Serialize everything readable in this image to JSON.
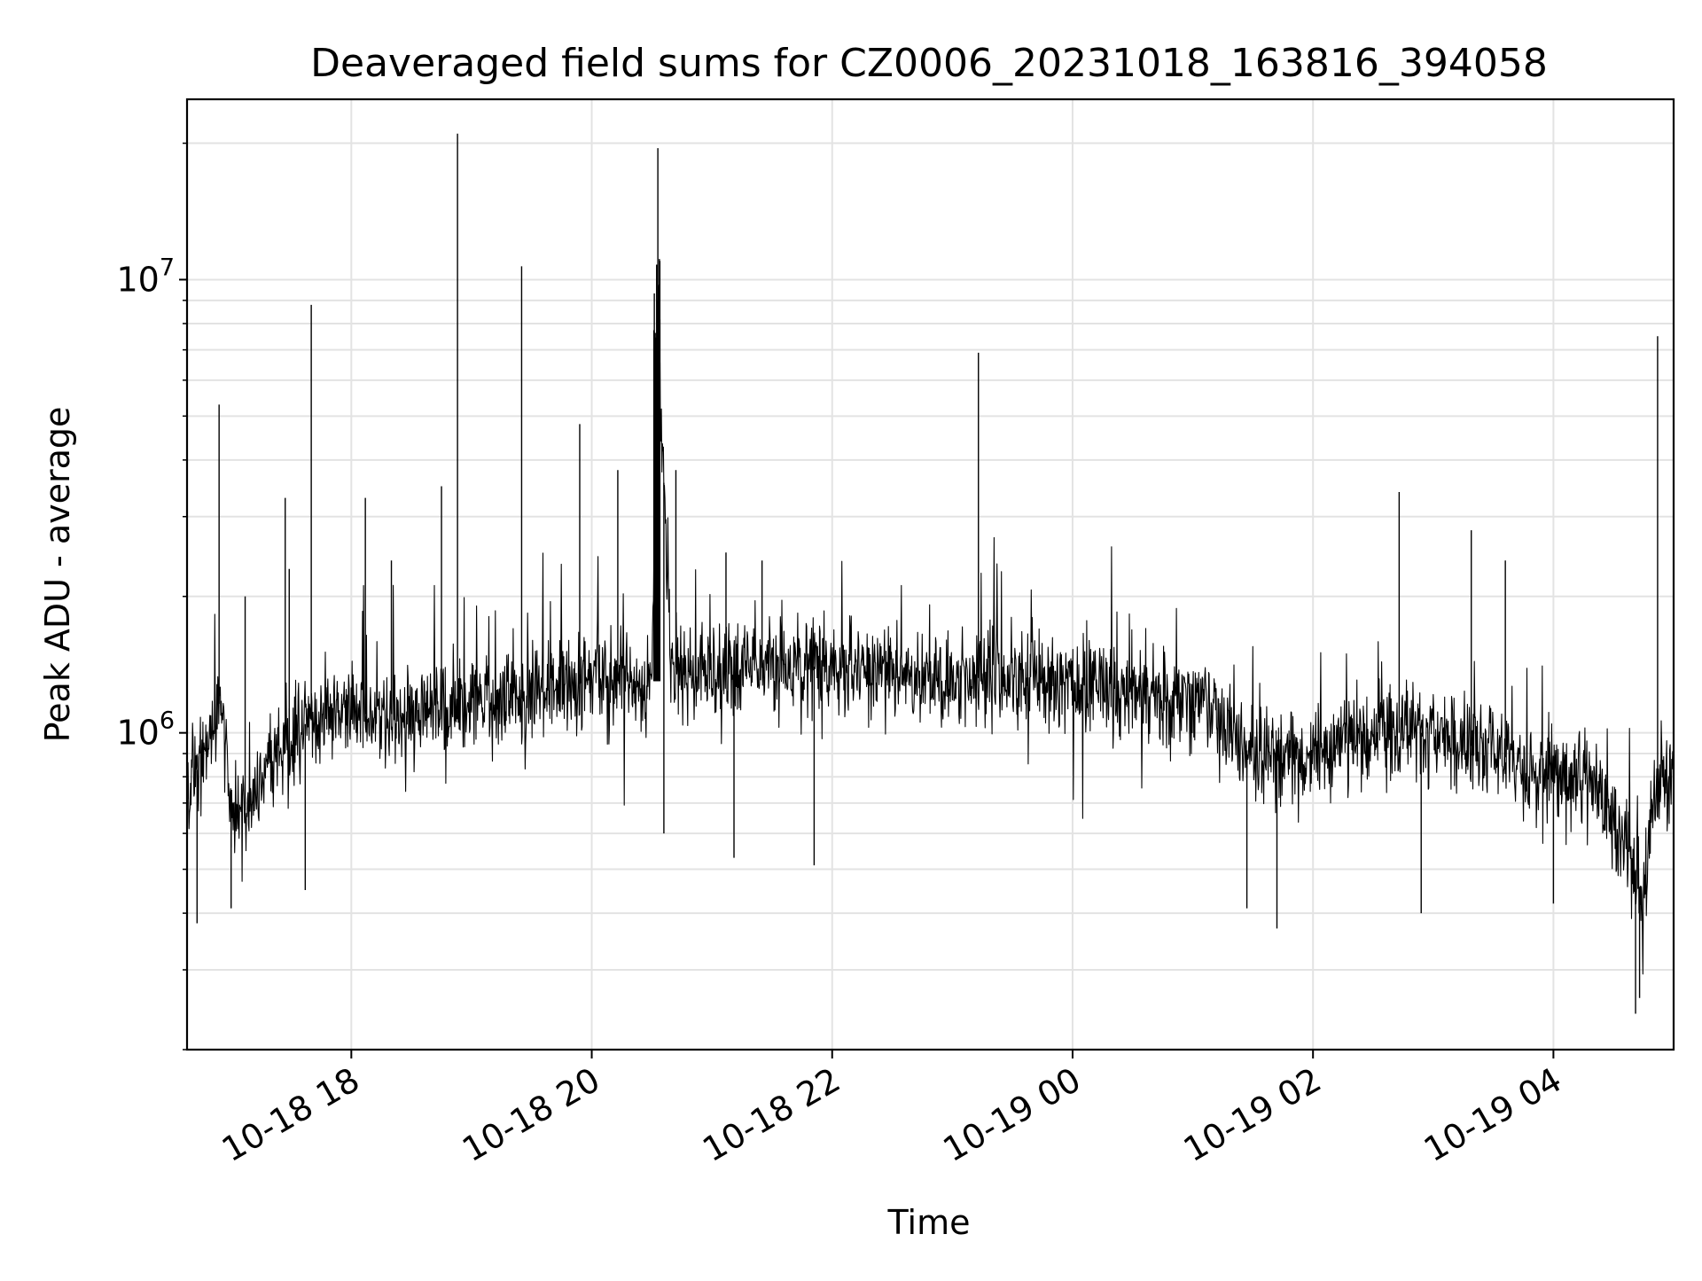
{
  "chart_data": {
    "type": "line",
    "title": "Deaveraged field sums for CZ0006_20231018_163816_394058",
    "xlabel": "Time",
    "ylabel": "Peak ADU - average",
    "x_range": [
      "2023-10-18T16:38",
      "2023-10-19T05:00"
    ],
    "y_scale": "log",
    "ylim": [
      200000,
      25000000
    ],
    "x_ticks": [
      {
        "time": "2023-10-18T18:00",
        "label": "10-18 18"
      },
      {
        "time": "2023-10-18T20:00",
        "label": "10-18 20"
      },
      {
        "time": "2023-10-18T22:00",
        "label": "10-18 22"
      },
      {
        "time": "2023-10-19T00:00",
        "label": "10-19 00"
      },
      {
        "time": "2023-10-19T02:00",
        "label": "10-19 02"
      },
      {
        "time": "2023-10-19T04:00",
        "label": "10-19 04"
      }
    ],
    "y_ticks": [
      {
        "value": 1000000,
        "mantissa": "10",
        "exponent": "6"
      },
      {
        "value": 10000000,
        "mantissa": "10",
        "exponent": "7"
      }
    ],
    "grid": true,
    "legend": "none",
    "line_color": "#000000",
    "series": [
      {
        "x": [
          "2023-10-18T16:38",
          "2023-10-18T16:45",
          "2023-10-18T16:55",
          "2023-10-18T17:00",
          "2023-10-18T17:10",
          "2023-10-18T17:20",
          "2023-10-18T17:30",
          "2023-10-18T17:45",
          "2023-10-18T18:00",
          "2023-10-18T18:30",
          "2023-10-18T19:00",
          "2023-10-18T19:30",
          "2023-10-18T20:00",
          "2023-10-18T20:30",
          "2023-10-18T20:32",
          "2023-10-18T20:35",
          "2023-10-18T20:40",
          "2023-10-18T21:00",
          "2023-10-18T21:30",
          "2023-10-18T22:00",
          "2023-10-18T22:30",
          "2023-10-18T23:00",
          "2023-10-18T23:30",
          "2023-10-19T00:00",
          "2023-10-19T00:30",
          "2023-10-19T01:00",
          "2023-10-19T01:10",
          "2023-10-19T01:20",
          "2023-10-19T01:30",
          "2023-10-19T02:00",
          "2023-10-19T02:30",
          "2023-10-19T03:00",
          "2023-10-19T03:30",
          "2023-10-19T04:00",
          "2023-10-19T04:20",
          "2023-10-19T04:30",
          "2023-10-19T04:40",
          "2023-10-19T04:45",
          "2023-10-19T04:50",
          "2023-10-19T05:00"
        ],
        "y": [
          780000,
          850000,
          1200000,
          620000,
          700000,
          850000,
          1000000,
          1100000,
          1100000,
          1100000,
          1150000,
          1200000,
          1300000,
          1300000,
          4000000,
          4500000,
          1400000,
          1350000,
          1400000,
          1400000,
          1350000,
          1300000,
          1350000,
          1300000,
          1200000,
          1200000,
          1150000,
          1000000,
          880000,
          880000,
          1000000,
          1000000,
          900000,
          820000,
          780000,
          640000,
          520000,
          420000,
          700000,
          850000
        ]
      }
    ],
    "spikes": [
      {
        "x": "2023-10-18T16:54",
        "y": 5300000
      },
      {
        "x": "2023-10-18T17:07",
        "y": 2000000
      },
      {
        "x": "2023-10-18T17:27",
        "y": 3300000
      },
      {
        "x": "2023-10-18T17:29",
        "y": 2300000
      },
      {
        "x": "2023-10-18T17:40",
        "y": 8800000
      },
      {
        "x": "2023-10-18T18:07",
        "y": 3300000
      },
      {
        "x": "2023-10-18T18:20",
        "y": 2400000
      },
      {
        "x": "2023-10-18T18:45",
        "y": 3500000
      },
      {
        "x": "2023-10-18T18:53",
        "y": 21000000
      },
      {
        "x": "2023-10-18T19:25",
        "y": 10700000
      },
      {
        "x": "2023-10-18T19:54",
        "y": 4800000
      },
      {
        "x": "2023-10-18T20:13",
        "y": 3800000
      },
      {
        "x": "2023-10-18T20:33",
        "y": 19500000
      },
      {
        "x": "2023-10-18T20:34",
        "y": 11000000
      },
      {
        "x": "2023-10-18T20:42",
        "y": 3800000
      },
      {
        "x": "2023-10-18T21:07",
        "y": 2500000
      },
      {
        "x": "2023-10-18T21:25",
        "y": 2400000
      },
      {
        "x": "2023-10-18T23:13",
        "y": 6900000
      },
      {
        "x": "2023-10-19T02:43",
        "y": 3400000
      },
      {
        "x": "2023-10-19T03:19",
        "y": 2800000
      },
      {
        "x": "2023-10-19T03:36",
        "y": 2400000
      },
      {
        "x": "2023-10-19T04:52",
        "y": 7500000
      }
    ],
    "dips": [
      {
        "x": "2023-10-18T16:43",
        "y": 380000
      },
      {
        "x": "2023-10-18T17:00",
        "y": 410000
      },
      {
        "x": "2023-10-18T17:37",
        "y": 450000
      },
      {
        "x": "2023-10-18T20:36",
        "y": 600000
      },
      {
        "x": "2023-10-18T21:11",
        "y": 530000
      },
      {
        "x": "2023-10-18T21:51",
        "y": 510000
      },
      {
        "x": "2023-10-19T01:27",
        "y": 410000
      },
      {
        "x": "2023-10-19T01:42",
        "y": 370000
      },
      {
        "x": "2023-10-19T02:54",
        "y": 400000
      },
      {
        "x": "2023-10-19T04:00",
        "y": 420000
      },
      {
        "x": "2023-10-19T04:41",
        "y": 240000
      },
      {
        "x": "2023-10-19T04:43",
        "y": 260000
      }
    ]
  }
}
